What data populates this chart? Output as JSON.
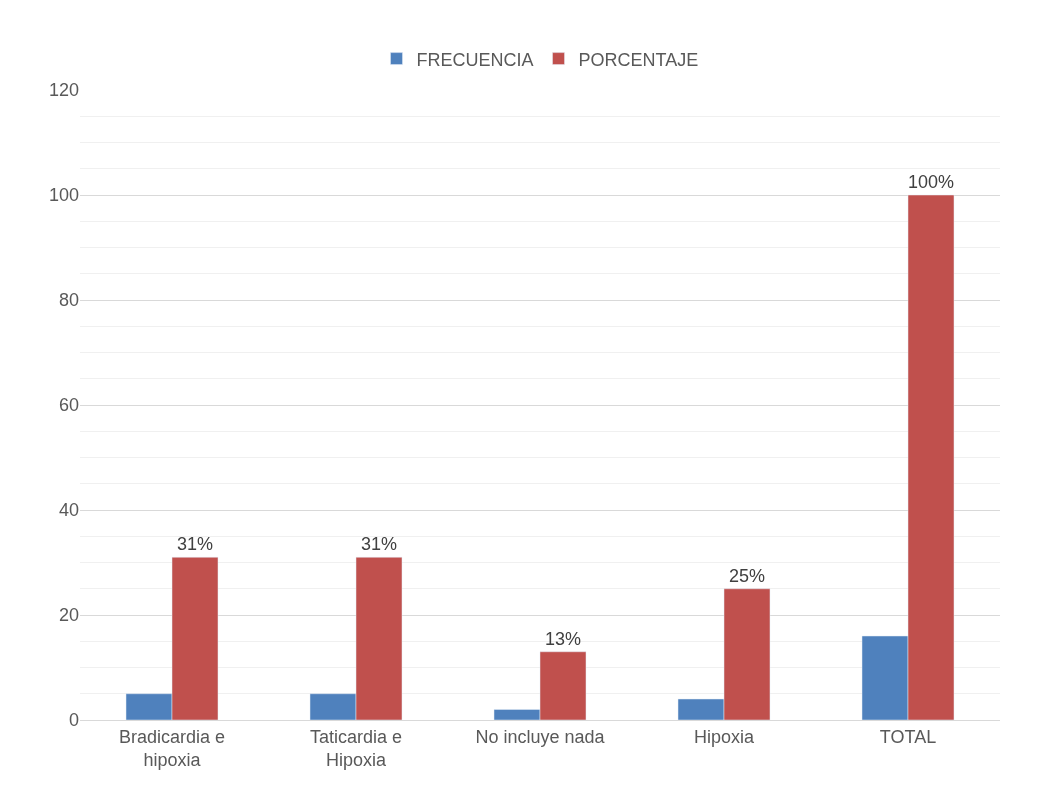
{
  "chart_data": {
    "type": "bar",
    "categories": [
      "Bradicardia e\nhipoxia",
      "Taticardia e\nHipoxia",
      "No incluye nada",
      "Hipoxia",
      "TOTAL"
    ],
    "series": [
      {
        "name": "FRECUENCIA",
        "color": "#4f81bd",
        "values": [
          5,
          5,
          2,
          4,
          16
        ]
      },
      {
        "name": "PORCENTAJE",
        "color": "#c0504d",
        "values": [
          31,
          31,
          13,
          25,
          100
        ],
        "value_labels": [
          "31%",
          "31%",
          "13%",
          "25%",
          "100%"
        ]
      }
    ],
    "ylim": [
      0,
      120
    ],
    "yticks": [
      0,
      20,
      40,
      60,
      80,
      100,
      120
    ],
    "grid": "y",
    "legend": "top"
  }
}
